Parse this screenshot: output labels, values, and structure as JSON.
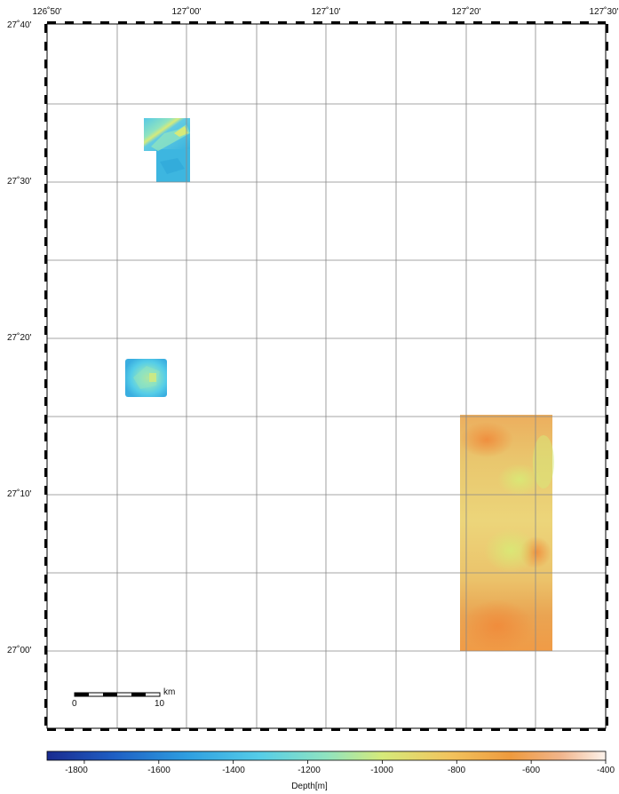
{
  "map": {
    "longitude_ticks": [
      "126˚50'",
      "127˚00'",
      "127˚10'",
      "127˚20'",
      "127˚30'"
    ],
    "latitude_ticks": [
      "27˚40'",
      "27˚30'",
      "27˚20'",
      "27˚10'",
      "27˚00'"
    ],
    "extent": {
      "lon_min": 126.8333,
      "lon_max": 127.5,
      "lat_min": 26.9167,
      "lat_max": 27.6667
    },
    "gridlines": "on",
    "survey_patches": [
      {
        "name": "northwest-patch",
        "lon": [
          126.95,
          127.0
        ],
        "lat": [
          27.5,
          27.5667
        ],
        "depth_range_m": [
          -1700,
          -1100
        ],
        "dominant_color": "#3fbde0"
      },
      {
        "name": "west-patch",
        "lon": [
          126.9333,
          126.9667
        ],
        "lat": [
          27.2667,
          27.3083
        ],
        "depth_range_m": [
          -1650,
          -1150
        ],
        "dominant_color": "#45c1dd"
      },
      {
        "name": "southeast-patch",
        "lon": [
          127.3333,
          127.4167
        ],
        "lat": [
          27.0,
          27.25
        ],
        "depth_range_m": [
          -1000,
          -550
        ],
        "dominant_color": "#e2b560"
      }
    ]
  },
  "scalebar": {
    "start_label": "0",
    "end_label": "10",
    "unit": "km"
  },
  "colorbar": {
    "title": "Depth[m]",
    "ticks": [
      "-1800",
      "-1600",
      "-1400",
      "-1200",
      "-1000",
      "-800",
      "-600",
      "-400"
    ],
    "range": [
      -1900,
      -400
    ],
    "colors": [
      "#1a2b8f",
      "#1f5fc4",
      "#2e9ee0",
      "#55cde8",
      "#8fe3c0",
      "#d6ea7a",
      "#f2c45e",
      "#ee9a3e",
      "#f0b58c",
      "#fdf3ec"
    ]
  }
}
